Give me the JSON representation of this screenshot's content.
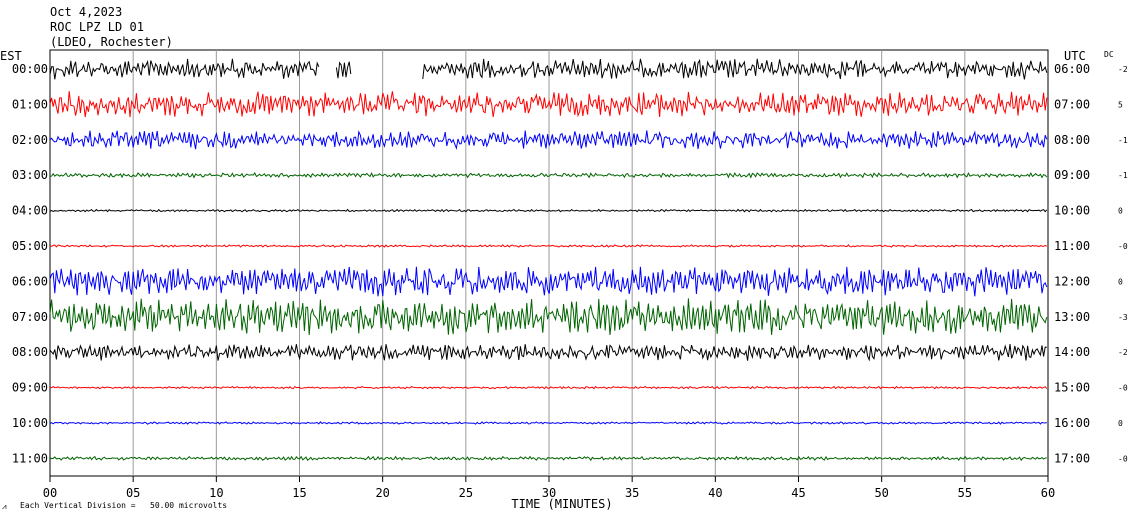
{
  "header": {
    "date": "Oct 4,2023",
    "station": "ROC LPZ LD 01",
    "network": "(LDEO, Rochester)"
  },
  "left_axis_label": "EST",
  "right_axis_label": "UTC",
  "dc_label": "DC",
  "x_axis_title": "TIME (MINUTES)",
  "footer_note": "Each Vertical Division =   50.00 microvolts",
  "chart_data": {
    "type": "line",
    "title": "",
    "xlabel": "TIME (MINUTES)",
    "xlim": [
      0,
      60
    ],
    "x_ticks": [
      "00",
      "05",
      "10",
      "15",
      "20",
      "25",
      "30",
      "35",
      "40",
      "45",
      "50",
      "55",
      "60"
    ],
    "grid": true,
    "trace_colors": [
      "#000000",
      "#ff0000",
      "#0000ff",
      "#006400"
    ],
    "rows": [
      {
        "est": "00:00",
        "utc": "06:00",
        "dc": "-2",
        "color": "#000000",
        "amplitude": 0.55,
        "gaps": [
          [
            16.2,
            17.2
          ],
          [
            18.1,
            22.4
          ]
        ]
      },
      {
        "est": "01:00",
        "utc": "07:00",
        "dc": "5",
        "color": "#ff0000",
        "amplitude": 0.7,
        "gaps": []
      },
      {
        "est": "02:00",
        "utc": "08:00",
        "dc": "-1",
        "color": "#0000ff",
        "amplitude": 0.5,
        "gaps": []
      },
      {
        "est": "03:00",
        "utc": "09:00",
        "dc": "-1",
        "color": "#006400",
        "amplitude": 0.12,
        "gaps": []
      },
      {
        "est": "04:00",
        "utc": "10:00",
        "dc": "0",
        "color": "#000000",
        "amplitude": 0.06,
        "gaps": []
      },
      {
        "est": "05:00",
        "utc": "11:00",
        "dc": "-0",
        "color": "#ff0000",
        "amplitude": 0.06,
        "gaps": []
      },
      {
        "est": "06:00",
        "utc": "12:00",
        "dc": "0",
        "color": "#0000ff",
        "amplitude": 0.8,
        "gaps": []
      },
      {
        "est": "07:00",
        "utc": "13:00",
        "dc": "-3",
        "color": "#006400",
        "amplitude": 1.0,
        "gaps": []
      },
      {
        "est": "08:00",
        "utc": "14:00",
        "dc": "-2",
        "color": "#000000",
        "amplitude": 0.45,
        "gaps": []
      },
      {
        "est": "09:00",
        "utc": "15:00",
        "dc": "-0",
        "color": "#ff0000",
        "amplitude": 0.06,
        "gaps": []
      },
      {
        "est": "10:00",
        "utc": "16:00",
        "dc": "0",
        "color": "#0000ff",
        "amplitude": 0.06,
        "gaps": []
      },
      {
        "est": "11:00",
        "utc": "17:00",
        "dc": "-0",
        "color": "#006400",
        "amplitude": 0.1,
        "gaps": []
      }
    ]
  }
}
